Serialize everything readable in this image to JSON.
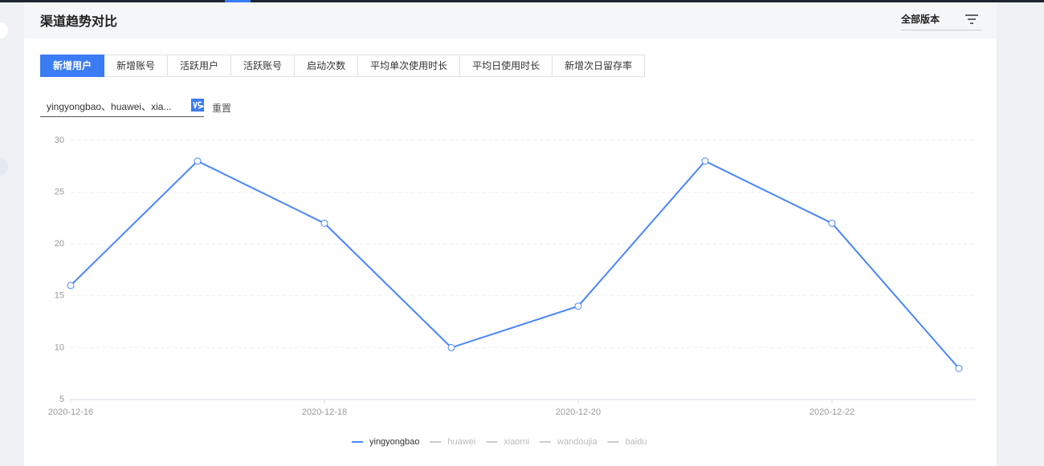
{
  "header": {
    "title": "渠道趋势对比",
    "version_select": "全部版本"
  },
  "tabs": [
    "新增用户",
    "新增账号",
    "活跃用户",
    "活跃账号",
    "启动次数",
    "平均单次使用时长",
    "平均日使用时长",
    "新增次日留存率"
  ],
  "active_tab": 0,
  "channel_select": "yingyongbao、huawei、xia...",
  "reset_button": "重置",
  "chart_data": {
    "type": "line",
    "categories": [
      "2020-12-16",
      null,
      "2020-12-18",
      null,
      "2020-12-20",
      null,
      "2020-12-22",
      null
    ],
    "series": [
      {
        "name": "yingyongbao",
        "color": "#4a86f7",
        "values": [
          16,
          28,
          22,
          10,
          14,
          28,
          22,
          8
        ]
      },
      {
        "name": "huawei",
        "color": "#cccccc",
        "hidden": true
      },
      {
        "name": "xiaomi",
        "color": "#cccccc",
        "hidden": true
      },
      {
        "name": "wandoujia",
        "color": "#cccccc",
        "hidden": true
      },
      {
        "name": "baidu",
        "color": "#cccccc",
        "hidden": true
      }
    ],
    "ylim": [
      5,
      30
    ],
    "yticks": [
      5,
      10,
      15,
      20,
      25,
      30
    ],
    "grid": true
  }
}
